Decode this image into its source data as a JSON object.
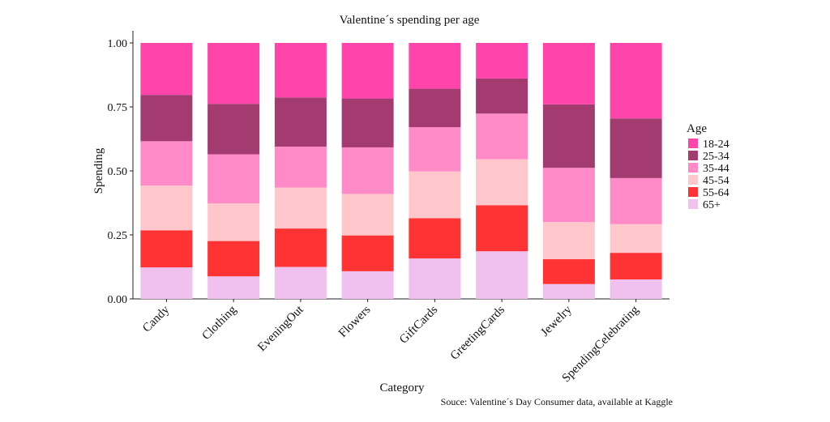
{
  "chart_data": {
    "type": "bar",
    "stacked": true,
    "title": "Valentine´s spending per age",
    "xlabel": "Category",
    "ylabel": "Spending",
    "ylim": [
      0,
      1
    ],
    "yticks": [
      "0.00",
      "0.25",
      "0.50",
      "0.75",
      "1.00"
    ],
    "categories": [
      "Candy",
      "Clothing",
      "EveningOut",
      "Flowers",
      "GiftCards",
      "GreetingCards",
      "Jewelry",
      "SpendingCelebrating"
    ],
    "legend_title": "Age",
    "legend_position": "right",
    "series": [
      {
        "name": "65+",
        "color": "#f0c0ee",
        "values": [
          0.123,
          0.088,
          0.125,
          0.108,
          0.158,
          0.186,
          0.058,
          0.076
        ]
      },
      {
        "name": "55-64",
        "color": "#ff3333",
        "values": [
          0.145,
          0.138,
          0.15,
          0.14,
          0.157,
          0.18,
          0.097,
          0.104
        ]
      },
      {
        "name": "45-54",
        "color": "#ffc6cc",
        "values": [
          0.175,
          0.147,
          0.16,
          0.162,
          0.183,
          0.18,
          0.145,
          0.112
        ]
      },
      {
        "name": "35-44",
        "color": "#ff8ac8",
        "values": [
          0.173,
          0.192,
          0.16,
          0.182,
          0.173,
          0.178,
          0.212,
          0.18
        ]
      },
      {
        "name": "25-34",
        "color": "#a33a70",
        "values": [
          0.181,
          0.197,
          0.192,
          0.191,
          0.15,
          0.137,
          0.248,
          0.233
        ]
      },
      {
        "name": "18-24",
        "color": "#ff44aa",
        "values": [
          0.203,
          0.238,
          0.213,
          0.217,
          0.179,
          0.139,
          0.24,
          0.295
        ]
      }
    ],
    "legend_order": [
      "18-24",
      "25-34",
      "35-44",
      "45-54",
      "55-64",
      "65+"
    ],
    "caption": "Souce: Valentine´s Day Consumer data, available at Kaggle"
  }
}
